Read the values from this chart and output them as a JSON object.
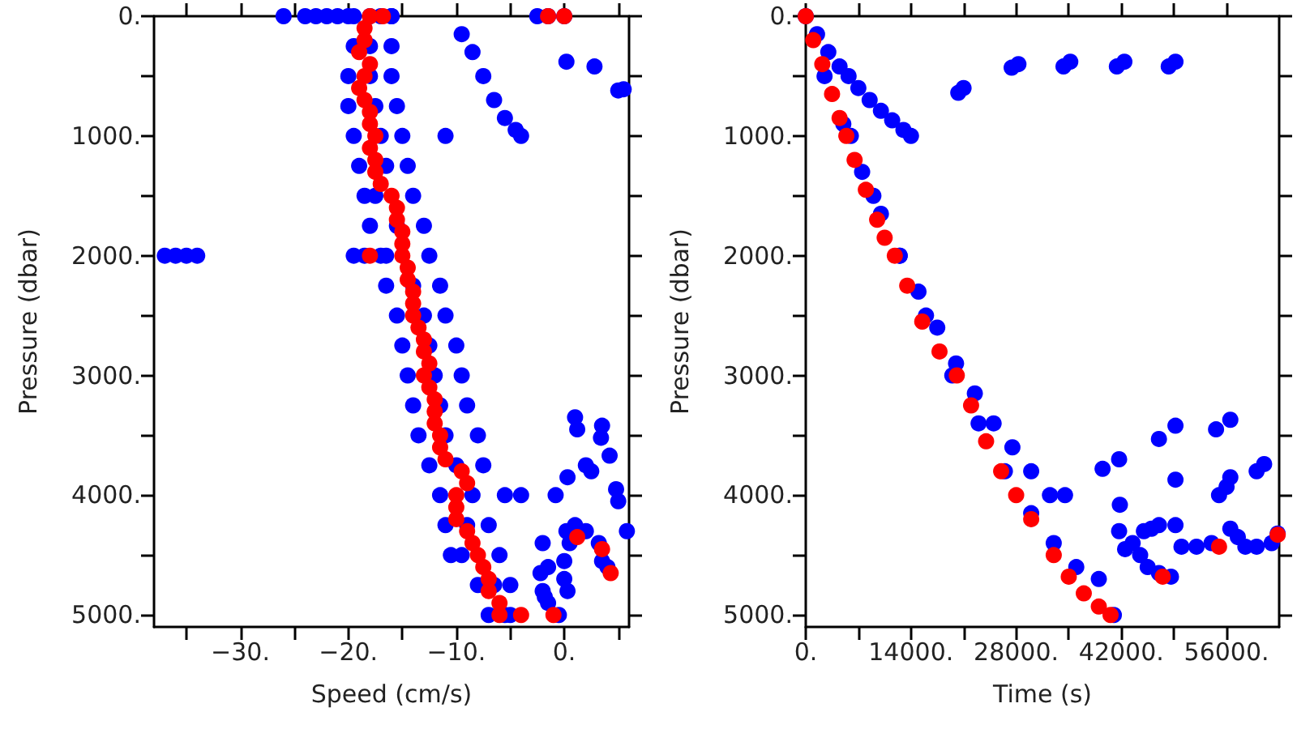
{
  "chart_data": [
    {
      "type": "scatter",
      "xlabel": "Speed (cm/s)",
      "ylabel": "Pressure (dbar)",
      "marker": "circle",
      "grid": false,
      "xlim": [
        -38,
        6
      ],
      "xticks": [
        {
          "value": -35,
          "label": null
        },
        {
          "value": -30,
          "label": "−30."
        },
        {
          "value": -25,
          "label": null
        },
        {
          "value": -20,
          "label": "−20."
        },
        {
          "value": -15,
          "label": null
        },
        {
          "value": -10,
          "label": "−10."
        },
        {
          "value": -5,
          "label": null
        },
        {
          "value": 0,
          "label": "0."
        },
        {
          "value": 5,
          "label": null
        }
      ],
      "ylim": [
        5100,
        0
      ],
      "yticks": [
        {
          "value": 0,
          "label": "0."
        },
        {
          "value": 500,
          "label": null
        },
        {
          "value": 1000,
          "label": "1000."
        },
        {
          "value": 1500,
          "label": null
        },
        {
          "value": 2000,
          "label": "2000."
        },
        {
          "value": 2500,
          "label": null
        },
        {
          "value": 3000,
          "label": "3000."
        },
        {
          "value": 3500,
          "label": null
        },
        {
          "value": 4000,
          "label": "4000."
        },
        {
          "value": 4500,
          "label": null
        },
        {
          "value": 5000,
          "label": "5000."
        }
      ],
      "series": [
        {
          "color": "#0000ff",
          "x": [
            -26,
            -24,
            -23,
            -22,
            -21,
            -20,
            -17,
            -16,
            -2.5,
            -1.5,
            0,
            -19.5,
            -18,
            -16,
            -19.5,
            -18,
            -16,
            -20,
            -18,
            -16,
            -20,
            -17.5,
            -15.5,
            -19.5,
            -17,
            -15,
            -19,
            -16.5,
            -14.5,
            -18.5,
            -17.5,
            -14,
            -18,
            -15.5,
            -13,
            -19.5,
            -16.5,
            -12.5,
            -16.5,
            -14,
            -11.5,
            -15.5,
            -13,
            -11,
            -15,
            -12.5,
            -10,
            -14.5,
            -12,
            -9.5,
            -14,
            -11.5,
            -9,
            -13.5,
            -11,
            -8,
            -12.5,
            -10,
            -7.5,
            -11.5,
            -8.5,
            -5.5,
            -4,
            -11,
            -9,
            -7,
            -10.5,
            -9.5,
            -6,
            -8,
            -6.5,
            -5,
            -7,
            -5,
            -5.5,
            -9.5,
            -8.5,
            -7.5,
            -6.5,
            -5.5,
            -4.5,
            -4,
            -11,
            -37,
            -36,
            -35,
            -34,
            -18.5,
            -17,
            0.2,
            2.8,
            5,
            5.5,
            1,
            1.2,
            3.5,
            3.4,
            2,
            2.5,
            4.2,
            0.3,
            -0.8,
            4.8,
            5,
            5.8,
            0.2,
            0.5,
            1,
            2,
            3.2,
            -2,
            -2.2,
            -1.5,
            0,
            0,
            0.3,
            -2,
            -1.5,
            -0.5,
            -1.8,
            3.5,
            4
          ],
          "values": [
            0,
            0,
            0,
            0,
            0,
            0,
            0,
            0,
            0,
            0,
            0,
            0,
            0,
            0,
            250,
            250,
            250,
            500,
            500,
            500,
            750,
            750,
            750,
            1000,
            1000,
            1000,
            1250,
            1250,
            1250,
            1500,
            1500,
            1500,
            1750,
            1750,
            1750,
            2000,
            2000,
            2000,
            2250,
            2250,
            2250,
            2500,
            2500,
            2500,
            2750,
            2750,
            2750,
            3000,
            3000,
            3000,
            3250,
            3250,
            3250,
            3500,
            3500,
            3500,
            3750,
            3750,
            3750,
            4000,
            4000,
            4000,
            4000,
            4250,
            4250,
            4250,
            4500,
            4500,
            4500,
            4750,
            4750,
            4750,
            5000,
            5000,
            5000,
            150,
            300,
            500,
            700,
            850,
            950,
            1000,
            1000,
            2000,
            2000,
            2000,
            2000,
            2000,
            2000,
            380,
            420,
            620,
            610,
            3350,
            3450,
            3420,
            3520,
            3750,
            3800,
            3670,
            3850,
            4000,
            3950,
            4050,
            4300,
            4300,
            4400,
            4250,
            4300,
            4400,
            4400,
            4650,
            4600,
            4550,
            4700,
            4800,
            4800,
            4900,
            5000,
            4850,
            4550,
            4600
          ]
        },
        {
          "color": "#ff0000",
          "x": [
            -18,
            -18.5,
            -18.5,
            -19,
            -18,
            -18.5,
            -19,
            -18.5,
            -18,
            -18,
            -17.5,
            -18,
            -17.5,
            -17.5,
            -17,
            -16,
            -15.5,
            -15.5,
            -15,
            -15,
            -15,
            -14.5,
            -14.5,
            -14,
            -14,
            -14,
            -13.5,
            -13,
            -13,
            -12.5,
            -13,
            -12.5,
            -12,
            -12,
            -12,
            -11.5,
            -11.5,
            -11,
            -9.5,
            -9,
            -10,
            -10,
            -10,
            -9,
            -8.5,
            -8,
            -7.5,
            -7,
            -7,
            -6,
            -6,
            -16.8,
            -1.5,
            0,
            -18,
            1.2,
            3.5,
            4.3,
            -4,
            -1
          ],
          "values": [
            0,
            100,
            200,
            300,
            400,
            500,
            600,
            700,
            800,
            900,
            1000,
            1100,
            1200,
            1300,
            1400,
            1500,
            1600,
            1700,
            1800,
            1900,
            2000,
            2100,
            2200,
            2300,
            2400,
            2500,
            2600,
            2700,
            2800,
            2900,
            3000,
            3100,
            3200,
            3300,
            3400,
            3500,
            3600,
            3700,
            3800,
            3900,
            4000,
            4100,
            4200,
            4300,
            4400,
            4500,
            4600,
            4700,
            4800,
            4900,
            5000,
            0,
            0,
            0,
            2000,
            4350,
            4450,
            4650,
            5000,
            5000
          ]
        }
      ]
    },
    {
      "type": "scatter",
      "xlabel": "Time (s)",
      "ylabel": "Pressure (dbar)",
      "marker": "circle",
      "grid": false,
      "xlim": [
        0,
        63000
      ],
      "xticks": [
        {
          "value": 0,
          "label": "0."
        },
        {
          "value": 7000,
          "label": null
        },
        {
          "value": 14000,
          "label": "14000."
        },
        {
          "value": 21000,
          "label": null
        },
        {
          "value": 28000,
          "label": "28000."
        },
        {
          "value": 35000,
          "label": null
        },
        {
          "value": 42000,
          "label": "42000."
        },
        {
          "value": 49000,
          "label": null
        },
        {
          "value": 56000,
          "label": "56000."
        }
      ],
      "ylim": [
        5100,
        0
      ],
      "yticks": [
        {
          "value": 0,
          "label": "0."
        },
        {
          "value": 500,
          "label": null
        },
        {
          "value": 1000,
          "label": "1000."
        },
        {
          "value": 1500,
          "label": null
        },
        {
          "value": 2000,
          "label": "2000."
        },
        {
          "value": 2500,
          "label": null
        },
        {
          "value": 3000,
          "label": "3000."
        },
        {
          "value": 3500,
          "label": null
        },
        {
          "value": 4000,
          "label": "4000."
        },
        {
          "value": 4500,
          "label": null
        },
        {
          "value": 5000,
          "label": "5000."
        }
      ],
      "series": [
        {
          "color": "#0000ff",
          "x": [
            0,
            1500,
            3000,
            4500,
            5700,
            7000,
            8500,
            10000,
            11500,
            13000,
            14000,
            2500,
            5000,
            7500,
            10000,
            12500,
            15000,
            17500,
            20000,
            22500,
            25000,
            27500,
            30000,
            32500,
            34500,
            6000,
            9000,
            12500,
            16000,
            19500,
            23000,
            26500,
            30000,
            33000,
            36000,
            39000,
            41000,
            20300,
            21000,
            27400,
            28300,
            34300,
            35200,
            41400,
            42400,
            48300,
            49200,
            39500,
            41700,
            41800,
            41700,
            42500,
            43500,
            44500,
            45000,
            46000,
            47000,
            45500,
            47000,
            48600,
            47000,
            49200,
            49200,
            49200,
            50000,
            52000,
            54000,
            55000,
            56000,
            54600,
            56500,
            56500,
            56500,
            57500,
            58500,
            60000,
            60000,
            61000,
            62000,
            62800
          ],
          "values": [
            0,
            150,
            300,
            420,
            500,
            600,
            700,
            790,
            870,
            950,
            1000,
            500,
            900,
            1300,
            1650,
            2000,
            2300,
            2600,
            2900,
            3150,
            3400,
            3600,
            3800,
            4000,
            4000,
            1000,
            1500,
            2000,
            2500,
            3000,
            3400,
            3800,
            4150,
            4400,
            4600,
            4700,
            5000,
            640,
            600,
            430,
            400,
            420,
            380,
            420,
            380,
            420,
            380,
            3780,
            3700,
            4080,
            4300,
            4450,
            4400,
            4500,
            4300,
            4280,
            4250,
            4600,
            4650,
            4680,
            3530,
            3420,
            3870,
            4250,
            4430,
            4430,
            4400,
            4000,
            3930,
            3450,
            3370,
            3850,
            4280,
            4350,
            4430,
            4430,
            3800,
            3740,
            4400,
            4320
          ]
        },
        {
          "color": "#ff0000",
          "x": [
            0,
            1000,
            2200,
            3500,
            4500,
            5400,
            6500,
            8000,
            9500,
            10500,
            11850,
            13500,
            15500,
            17800,
            20100,
            22000,
            24000,
            26000,
            28000,
            30000,
            33000,
            35000,
            37000,
            39000,
            40560,
            47500,
            55000,
            62800
          ],
          "values": [
            0,
            200,
            400,
            650,
            850,
            1000,
            1200,
            1450,
            1700,
            1850,
            2000,
            2250,
            2550,
            2800,
            3000,
            3250,
            3550,
            3800,
            4000,
            4200,
            4500,
            4680,
            4820,
            4930,
            5000,
            4680,
            4430,
            4330
          ]
        }
      ]
    }
  ]
}
